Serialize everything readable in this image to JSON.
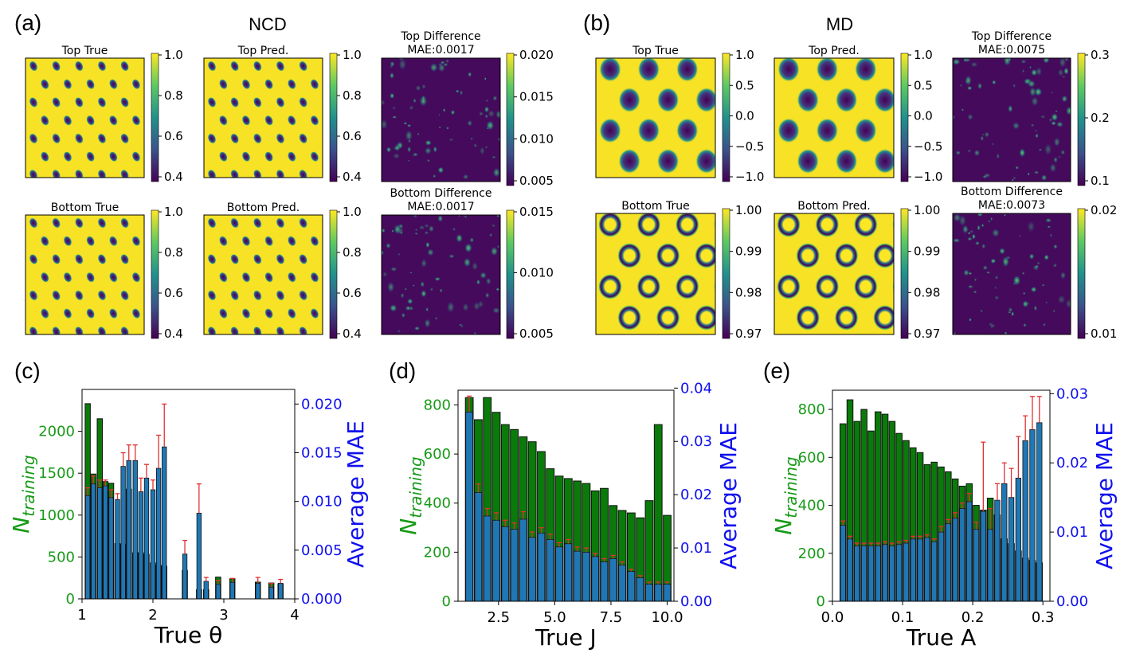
{
  "colors": {
    "green": "#0a7a0a",
    "blue": "#1f77b4",
    "err": "#e03030",
    "label_blue": "#1010ee",
    "label_green": "#179a17"
  },
  "top": {
    "panel_a": "(a)",
    "panel_b": "(b)",
    "ncd_title": "NCD",
    "md_title": "MD",
    "panels": [
      {
        "title": "Top True",
        "variant": "ncd",
        "ticks": [
          "1.0",
          "0.8",
          "0.6",
          "0.4"
        ]
      },
      {
        "title": "Top Pred.",
        "variant": "ncd",
        "ticks": [
          "1.0",
          "0.8",
          "0.6",
          "0.4"
        ]
      },
      {
        "title": "Top Difference",
        "subtitle": "MAE:0.0017",
        "variant": "diff",
        "ticks": [
          "0.020",
          "0.015",
          "0.010",
          "0.005"
        ]
      },
      {
        "title": "Bottom True",
        "variant": "ncd",
        "ticks": [
          "1.0",
          "0.8",
          "0.6",
          "0.4"
        ]
      },
      {
        "title": "Bottom Pred.",
        "variant": "ncd",
        "ticks": [
          "1.0",
          "0.8",
          "0.6",
          "0.4"
        ]
      },
      {
        "title": "Bottom Difference",
        "subtitle": "MAE:0.0017",
        "variant": "diff",
        "ticks": [
          "0.015",
          "0.010",
          "0.005"
        ]
      },
      {
        "title": "Top True",
        "variant": "md",
        "ticks": [
          "1.0",
          "0.5",
          "0.0",
          "−0.5",
          "−1.0"
        ]
      },
      {
        "title": "Top Pred.",
        "variant": "md",
        "ticks": [
          "1.0",
          "0.5",
          "0.0",
          "−0.5",
          "−1.0"
        ]
      },
      {
        "title": "Top Difference",
        "subtitle": "MAE:0.0075",
        "variant": "diff",
        "ticks": [
          "0.3",
          "0.2",
          "0.1"
        ]
      },
      {
        "title": "Bottom True",
        "variant": "ring",
        "ticks": [
          "1.00",
          "0.99",
          "0.98",
          "0.97"
        ]
      },
      {
        "title": "Bottom Pred.",
        "variant": "ring",
        "ticks": [
          "1.00",
          "0.99",
          "0.98",
          "0.97"
        ]
      },
      {
        "title": "Bottom Difference",
        "subtitle": "MAE:0.0073",
        "variant": "diff",
        "ticks": [
          "0.02",
          "0.01"
        ]
      }
    ]
  },
  "chart_data": [
    {
      "panel": "(c)",
      "type": "bar",
      "xlabel": "True θ",
      "ylabel_left": "N_training",
      "ylabel_right": "Average MAE",
      "xlim": [
        1,
        4
      ],
      "ylim_left": [
        0,
        2500
      ],
      "ylim_right": [
        0,
        0.0215
      ],
      "xticks": [
        "1",
        "2",
        "3",
        "4"
      ],
      "yticks_left": [
        "0",
        "500",
        "1000",
        "1500",
        "2000"
      ],
      "yticks_right": [
        "0.000",
        "0.005",
        "0.010",
        "0.015",
        "0.020"
      ],
      "x": [
        1.08,
        1.16,
        1.25,
        1.33,
        1.41,
        1.5,
        1.58,
        1.66,
        1.75,
        1.83,
        1.91,
        2.0,
        2.08,
        2.16,
        2.45,
        2.65,
        2.75,
        2.92,
        3.12,
        3.48,
        3.67,
        3.8
      ],
      "n_training": [
        2330,
        1490,
        2150,
        1400,
        1380,
        660,
        650,
        1310,
        550,
        550,
        530,
        430,
        400,
        390,
        340,
        110,
        110,
        260,
        240,
        200,
        190,
        180
      ],
      "mae": [
        0.0106,
        0.0118,
        0.0114,
        0.0116,
        0.0104,
        0.0102,
        0.0136,
        0.0142,
        0.0142,
        0.011,
        0.0124,
        0.0112,
        0.0134,
        0.0156,
        0.0046,
        0.0088,
        0.0018,
        0.0015,
        0.0017,
        0.0016,
        0.0012,
        0.0016
      ],
      "mae_err": [
        0.0008,
        0.0008,
        0.0008,
        0.0006,
        0.0008,
        0.0006,
        0.0014,
        0.0016,
        0.0016,
        0.0014,
        0.0014,
        0.001,
        0.0034,
        0.0044,
        0.0014,
        0.003,
        0.0004,
        0.0004,
        0.0004,
        0.0006,
        0.0004,
        0.0004
      ]
    },
    {
      "panel": "(d)",
      "type": "bar",
      "xlabel": "True J",
      "ylabel_left": "N_training",
      "ylabel_right": "Average MAE",
      "xlim": [
        0.7,
        10.3
      ],
      "ylim_left": [
        0,
        860
      ],
      "ylim_right": [
        0,
        0.0396
      ],
      "xticks": [
        "2.5",
        "5.0",
        "7.5",
        "10.0"
      ],
      "yticks_left": [
        "0",
        "200",
        "400",
        "600",
        "800"
      ],
      "yticks_right": [
        "0.00",
        "0.01",
        "0.02",
        "0.03",
        "0.04"
      ],
      "x": [
        1.2,
        1.6,
        2.0,
        2.4,
        2.8,
        3.2,
        3.6,
        4.0,
        4.4,
        4.8,
        5.2,
        5.6,
        6.0,
        6.4,
        6.8,
        7.2,
        7.6,
        8.0,
        8.4,
        8.8,
        9.2,
        9.6,
        10.0
      ],
      "n_training": [
        830,
        740,
        830,
        770,
        720,
        700,
        670,
        650,
        610,
        540,
        510,
        500,
        490,
        480,
        450,
        460,
        390,
        370,
        360,
        340,
        410,
        720,
        350
      ],
      "mae": [
        0.0355,
        0.0204,
        0.016,
        0.0152,
        0.014,
        0.0135,
        0.0154,
        0.012,
        0.0128,
        0.0116,
        0.0102,
        0.0108,
        0.0094,
        0.0092,
        0.0084,
        0.0074,
        0.008,
        0.0068,
        0.0056,
        0.0044,
        0.0032,
        0.0032,
        0.0032
      ],
      "mae_err": [
        0.003,
        0.0016,
        0.0014,
        0.0014,
        0.0012,
        0.0012,
        0.0014,
        0.001,
        0.001,
        0.001,
        0.0008,
        0.0008,
        0.0008,
        0.0008,
        0.0006,
        0.0006,
        0.0006,
        0.0006,
        0.0004,
        0.0004,
        0.0004,
        0.0004,
        0.0004
      ]
    },
    {
      "panel": "(e)",
      "type": "bar",
      "xlabel": "True A",
      "ylabel_left": "N_training",
      "ylabel_right": "Average MAE",
      "xlim": [
        0,
        0.31
      ],
      "ylim_left": [
        0,
        880
      ],
      "ylim_right": [
        0,
        0.0305
      ],
      "xticks": [
        "0.0",
        "0.1",
        "0.2",
        "0.3"
      ],
      "yticks_left": [
        "0",
        "200",
        "400",
        "600",
        "800"
      ],
      "yticks_right": [
        "0.00",
        "0.01",
        "0.02",
        "0.03"
      ],
      "x": [
        0.015,
        0.025,
        0.035,
        0.045,
        0.055,
        0.065,
        0.075,
        0.085,
        0.095,
        0.105,
        0.115,
        0.125,
        0.135,
        0.145,
        0.155,
        0.165,
        0.175,
        0.185,
        0.195,
        0.205,
        0.215,
        0.225,
        0.235,
        0.245,
        0.255,
        0.265,
        0.275,
        0.285,
        0.295
      ],
      "n_training": [
        740,
        840,
        750,
        800,
        710,
        790,
        780,
        750,
        700,
        670,
        640,
        620,
        570,
        580,
        560,
        540,
        510,
        480,
        490,
        400,
        380,
        430,
        360,
        260,
        240,
        210,
        180,
        170,
        160
      ],
      "mae": [
        0.011,
        0.009,
        0.008,
        0.008,
        0.008,
        0.008,
        0.0082,
        0.008,
        0.0082,
        0.0084,
        0.009,
        0.009,
        0.0092,
        0.0086,
        0.01,
        0.0112,
        0.012,
        0.0134,
        0.0144,
        0.0104,
        0.013,
        0.0104,
        0.0146,
        0.017,
        0.015,
        0.0178,
        0.0232,
        0.0248,
        0.0258
      ],
      "mae_err": [
        0.0006,
        0.0004,
        0.0004,
        0.0004,
        0.0004,
        0.0004,
        0.0004,
        0.0004,
        0.0004,
        0.0004,
        0.0004,
        0.0004,
        0.0004,
        0.0004,
        0.0008,
        0.0006,
        0.0008,
        0.0008,
        0.0012,
        0.001,
        0.01,
        0.003,
        0.0024,
        0.003,
        0.0042,
        0.006,
        0.0036,
        0.0048,
        0.0038
      ]
    }
  ]
}
